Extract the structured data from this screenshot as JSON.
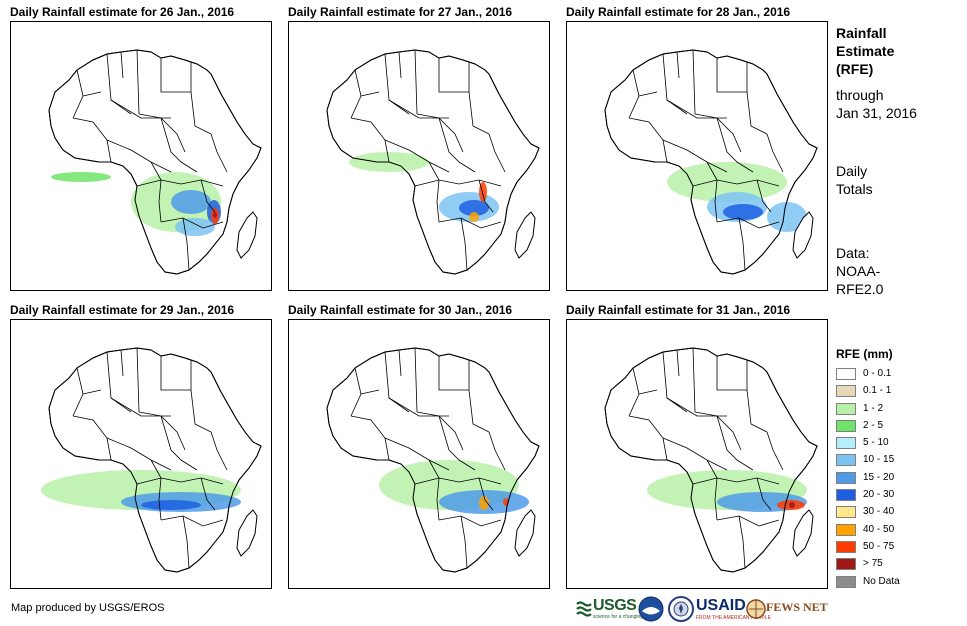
{
  "panels": [
    {
      "id": "jan26",
      "title": "Daily Rainfall estimate for 26 Jan., 2016"
    },
    {
      "id": "jan27",
      "title": "Daily Rainfall estimate for 27 Jan., 2016"
    },
    {
      "id": "jan28",
      "title": "Daily Rainfall estimate for 28 Jan., 2016"
    },
    {
      "id": "jan29",
      "title": "Daily Rainfall estimate for 29 Jan., 2016"
    },
    {
      "id": "jan30",
      "title": "Daily Rainfall estimate for 30 Jan., 2016"
    },
    {
      "id": "jan31",
      "title": "Daily Rainfall estimate for 31 Jan., 2016"
    }
  ],
  "side_info": {
    "heading_line1": "Rainfall",
    "heading_line2": "Estimate",
    "heading_line3": "(RFE)",
    "through_label": "through",
    "through_date": "Jan 31, 2016",
    "totals_line1": "Daily",
    "totals_line2": "Totals",
    "data_line1": "Data:",
    "data_line2": "NOAA-",
    "data_line3": "RFE2.0"
  },
  "legend": {
    "title": "RFE (mm)",
    "items": [
      {
        "label": "0 - 0.1",
        "color": "#ffffff"
      },
      {
        "label": "0.1 - 1",
        "color": "#e9d7b9"
      },
      {
        "label": "1 - 2",
        "color": "#b9f0a8"
      },
      {
        "label": "2 - 5",
        "color": "#6fe36a"
      },
      {
        "label": "5 - 10",
        "color": "#b4effa"
      },
      {
        "label": "10 - 15",
        "color": "#7dc3f2"
      },
      {
        "label": "15 - 20",
        "color": "#4f9be8"
      },
      {
        "label": "20 - 30",
        "color": "#1e5fe0"
      },
      {
        "label": "30 - 40",
        "color": "#ffe98a"
      },
      {
        "label": "40 - 50",
        "color": "#ffa200"
      },
      {
        "label": "50 - 75",
        "color": "#ff3c00"
      },
      {
        "label": "> 75",
        "color": "#a01818"
      },
      {
        "label": "No Data",
        "color": "#8c8c8c"
      }
    ]
  },
  "footer": {
    "credit": "Map produced by USGS/EROS",
    "logos": {
      "usgs": "USGS",
      "usgs_tagline": "science for a changing world",
      "noaa": "noaa-logo-icon",
      "dos": "dos-seal-icon",
      "usaid": "USAID",
      "usaid_tagline": "FROM THE AMERICAN PEOPLE",
      "fews": "FEWS NET"
    }
  }
}
